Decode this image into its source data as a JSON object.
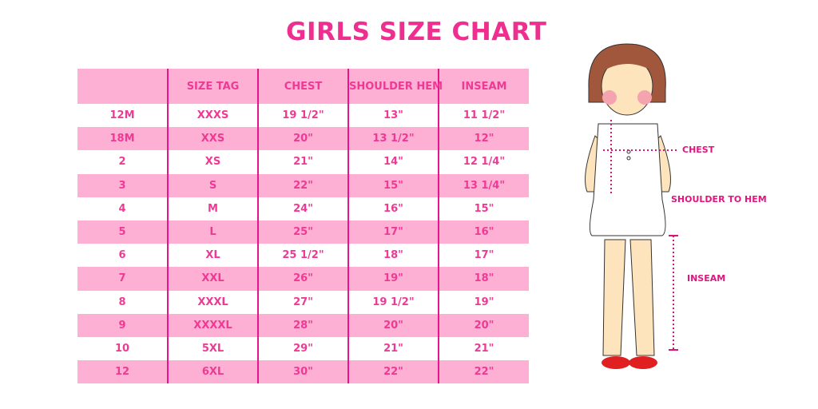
{
  "title": "GIRLS SIZE CHART",
  "table": {
    "headers": [
      "",
      "SIZE TAG",
      "CHEST",
      "SHOULDER HEM",
      "INSEAM"
    ],
    "rows": [
      [
        "12M",
        "XXXS",
        "19 1/2\"",
        "13\"",
        "11 1/2\""
      ],
      [
        "18M",
        "XXS",
        "20\"",
        "13 1/2\"",
        "12\""
      ],
      [
        "2",
        "XS",
        "21\"",
        "14\"",
        "12 1/4\""
      ],
      [
        "3",
        "S",
        "22\"",
        "15\"",
        "13 1/4\""
      ],
      [
        "4",
        "M",
        "24\"",
        "16\"",
        "15\""
      ],
      [
        "5",
        "L",
        "25\"",
        "17\"",
        "16\""
      ],
      [
        "6",
        "XL",
        "25 1/2\"",
        "18\"",
        "17\""
      ],
      [
        "7",
        "XXL",
        "26\"",
        "19\"",
        "18\""
      ],
      [
        "8",
        "XXXL",
        "27\"",
        "19 1/2\"",
        "19\""
      ],
      [
        "9",
        "XXXXL",
        "28\"",
        "20\"",
        "20\""
      ],
      [
        "10",
        "5XL",
        "29\"",
        "21\"",
        "21\""
      ],
      [
        "12",
        "6XL",
        "30\"",
        "22\"",
        "22\""
      ]
    ]
  },
  "illustration": {
    "labels": {
      "chest": "CHEST",
      "shoulder_to_hem": "SHOULDER TO HEM",
      "inseam": "INSEAM"
    }
  },
  "colors": {
    "accent": "#ee2f8f",
    "row_pink": "#fdb0d4",
    "border": "#e6168a"
  }
}
